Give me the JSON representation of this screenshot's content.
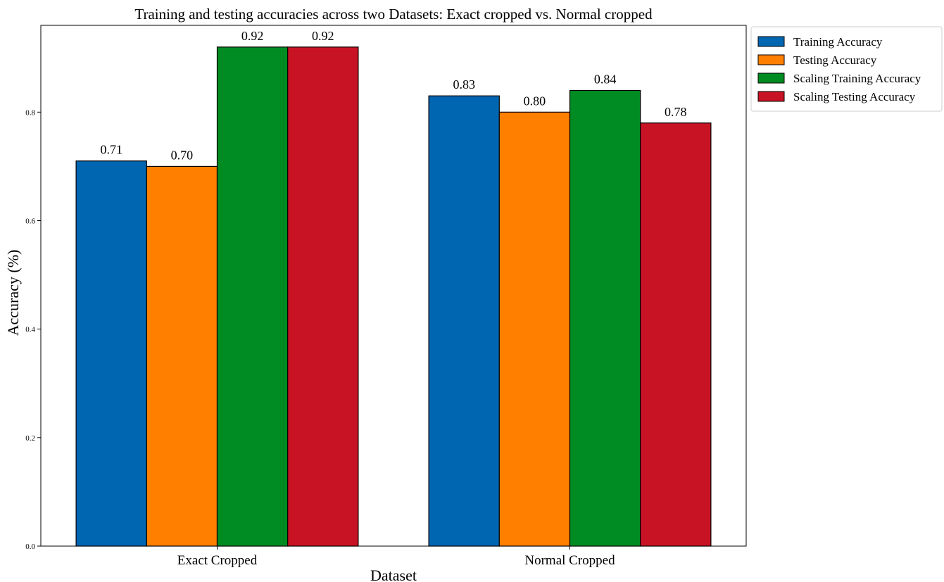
{
  "chart_data": {
    "type": "bar",
    "title": "Training and testing accuracies across two Datasets: Exact cropped vs. Normal cropped",
    "xlabel": "Dataset",
    "ylabel": "Accuracy (%)",
    "categories": [
      "Exact Cropped",
      "Normal Cropped"
    ],
    "ylim": [
      0,
      0.96
    ],
    "yticks": [
      0.0,
      0.2,
      0.4,
      0.6,
      0.8
    ],
    "ytick_labels": [
      "0.0",
      "0.2",
      "0.4",
      "0.6",
      "0.8"
    ],
    "grid": false,
    "legend_position": "outside-top-right",
    "series": [
      {
        "name": "Training Accuracy",
        "color": "#0066B2",
        "values": [
          0.71,
          0.83
        ],
        "labels": [
          "0.71",
          "0.83"
        ]
      },
      {
        "name": "Testing Accuracy",
        "color": "#FF7F00",
        "values": [
          0.7,
          0.8
        ],
        "labels": [
          "0.70",
          "0.80"
        ]
      },
      {
        "name": "Scaling Training Accuracy",
        "color": "#008C23",
        "values": [
          0.92,
          0.84
        ],
        "labels": [
          "0.92",
          "0.84"
        ]
      },
      {
        "name": "Scaling Testing Accuracy",
        "color": "#C81325",
        "values": [
          0.92,
          0.78
        ],
        "labels": [
          "0.92",
          "0.78"
        ]
      }
    ]
  }
}
